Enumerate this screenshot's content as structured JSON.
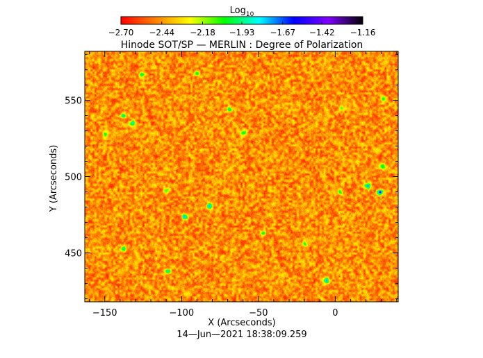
{
  "chart_data": {
    "type": "heatmap",
    "title": "Hinode SOT/SP — MERLIN : Degree of Polarization",
    "xlabel": "X (Arcseconds)",
    "ylabel": "Y (Arcseconds)",
    "xlim": [
      -163,
      41
    ],
    "ylim": [
      418,
      582
    ],
    "x_ticks": [
      -150,
      -100,
      -50,
      0
    ],
    "x_tick_labels": [
      "−150",
      "−100",
      "−50",
      "0"
    ],
    "y_ticks": [
      450,
      500,
      550
    ],
    "y_tick_labels": [
      "450",
      "500",
      "550"
    ],
    "colorbar": {
      "label": "Log",
      "label_subscript": "10",
      "range": [
        -2.7,
        -1.16
      ],
      "ticks": [
        -2.7,
        -2.44,
        -2.18,
        -1.93,
        -1.67,
        -1.42,
        -1.16
      ],
      "tick_labels": [
        "−2.70",
        "−2.44",
        "−2.18",
        "−1.93",
        "−1.67",
        "−1.42",
        "−1.16"
      ],
      "colormap": [
        "#ff0000",
        "#ff8000",
        "#ffff00",
        "#00ff00",
        "#00ffff",
        "#0000ff",
        "#8000ff",
        "#000000"
      ]
    },
    "field": {
      "description_values": "Degree of polarization map; predominantly around -2.5 to -2.3 (red/orange/yellow) with scattered higher patches (green/blue)",
      "typical_value": -2.45,
      "hotspots": [
        {
          "x": 21,
          "y": 494,
          "value": -1.45
        },
        {
          "x": 29,
          "y": 490,
          "value": -1.4
        },
        {
          "x": -6,
          "y": 432,
          "value": -1.45
        },
        {
          "x": -98,
          "y": 474,
          "value": -1.55
        },
        {
          "x": -82,
          "y": 481,
          "value": -1.6
        },
        {
          "x": -132,
          "y": 535,
          "value": -1.7
        },
        {
          "x": -138,
          "y": 540,
          "value": -1.8
        },
        {
          "x": -60,
          "y": 529,
          "value": -1.8
        },
        {
          "x": -138,
          "y": 453,
          "value": -1.75
        },
        {
          "x": -69,
          "y": 544,
          "value": -1.85
        },
        {
          "x": -126,
          "y": 567,
          "value": -1.9
        },
        {
          "x": -150,
          "y": 528,
          "value": -1.9
        },
        {
          "x": 4,
          "y": 545,
          "value": -1.9
        },
        {
          "x": 31,
          "y": 551,
          "value": -1.9
        },
        {
          "x": 31,
          "y": 507,
          "value": -1.85
        },
        {
          "x": -109,
          "y": 438,
          "value": -1.8
        },
        {
          "x": -20,
          "y": 456,
          "value": -1.9
        },
        {
          "x": 3,
          "y": 490,
          "value": -1.95
        },
        {
          "x": -47,
          "y": 463,
          "value": -1.9
        },
        {
          "x": -90,
          "y": 568,
          "value": -1.95
        },
        {
          "x": -110,
          "y": 491,
          "value": -1.95
        }
      ]
    },
    "footer": "14—Jun—2021 18:38:09.259"
  }
}
